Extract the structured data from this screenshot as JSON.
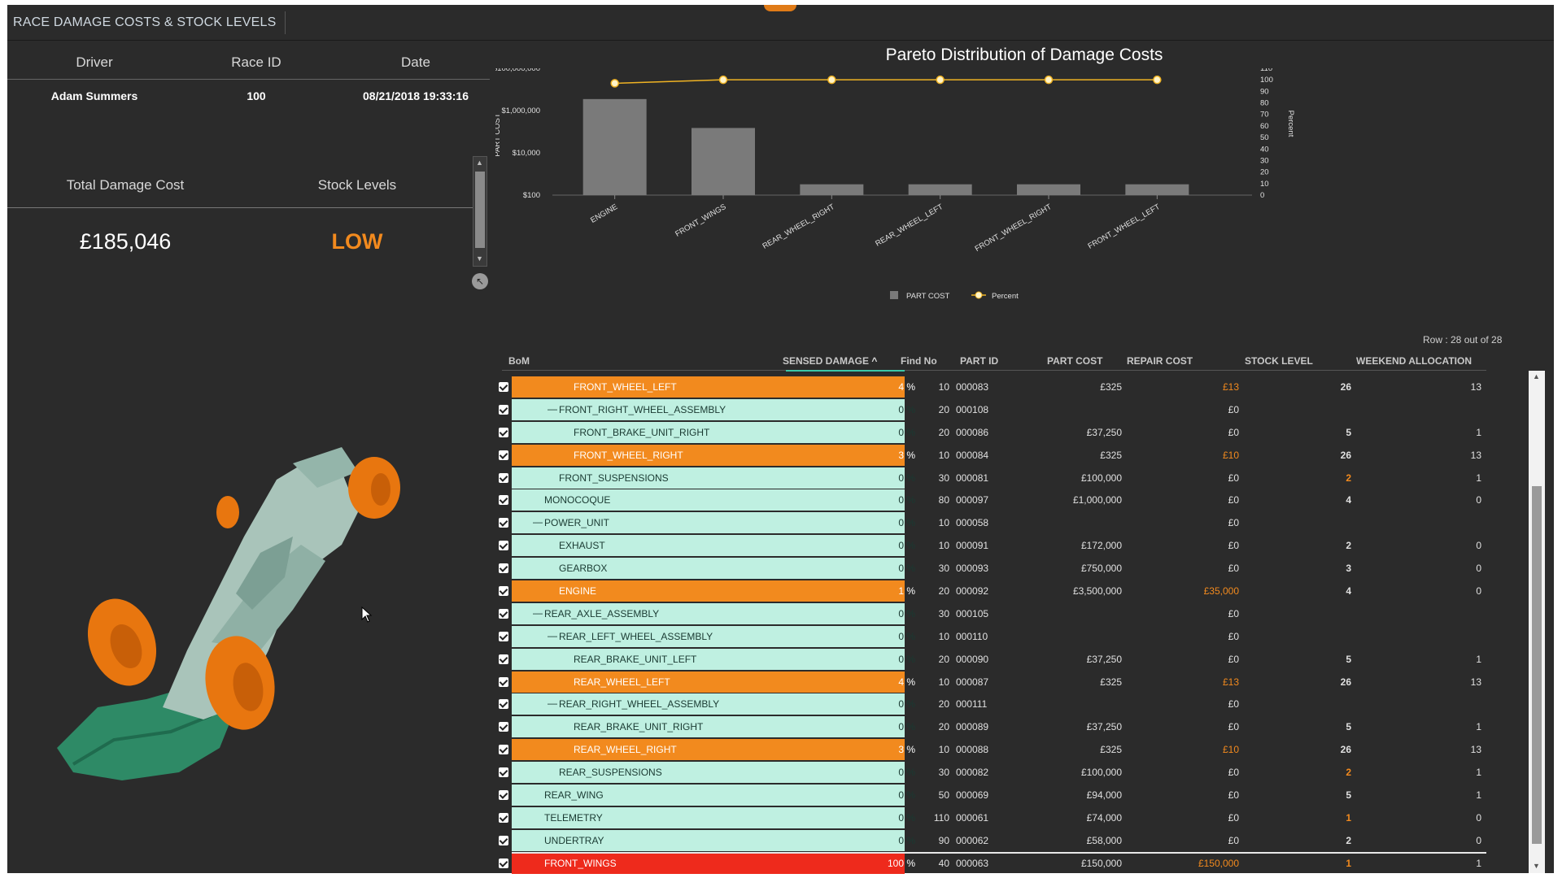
{
  "app": {
    "title": "RACE DAMAGE COSTS & STOCK LEVELS"
  },
  "info": {
    "headers": [
      "Driver",
      "Race ID",
      "Date"
    ],
    "values": [
      "Adam Summers",
      "100",
      "08/21/2018 19:33:16"
    ]
  },
  "kpis": {
    "total_label": "Total Damage Cost",
    "total_value": "£185,046",
    "stock_label": "Stock Levels",
    "stock_value": "LOW",
    "stock_color": "#f28a1e"
  },
  "chart_data": {
    "type": "bar",
    "title": "Pareto Distribution of  Damage Costs",
    "categories": [
      "ENGINE",
      "FRONT_WINGS",
      "REAR_WHEEL_RIGHT",
      "REAR_WHEEL_LEFT",
      "FRONT_WHEEL_RIGHT",
      "FRONT_WHEEL_LEFT"
    ],
    "series": [
      {
        "name": "PART COST",
        "type": "bar",
        "axis": "left",
        "values": [
          3500000,
          150000,
          325,
          325,
          325,
          325
        ],
        "color": "#7a7a7a"
      },
      {
        "name": "Percent",
        "type": "line",
        "axis": "right",
        "values": [
          97,
          100,
          100,
          100,
          100,
          100
        ],
        "color": "#f0b323"
      }
    ],
    "ylabel": "PART COST",
    "ylabel_right": "Percent",
    "yscale": "log",
    "ylim": [
      100,
      100000000
    ],
    "y_ticks": [
      "$100,000,000",
      "$1,000,000",
      "$10,000",
      "$100"
    ],
    "y_tick_values": [
      100000000,
      1000000,
      10000,
      100
    ],
    "ylim_right": [
      0,
      110
    ],
    "y_right_ticks": [
      "110",
      "100",
      "90",
      "80",
      "70",
      "60",
      "50",
      "40",
      "30",
      "20",
      "10",
      "0"
    ],
    "legend": [
      "PART COST",
      "Percent"
    ],
    "legend_position": "bottom-center"
  },
  "table": {
    "row_count": "Row : 28 out of 28",
    "headers": {
      "bom": "BoM",
      "damage": "SENSED DAMAGE",
      "sort_icon": "^",
      "find": "Find No",
      "part_id": "PART ID",
      "cost": "PART COST",
      "repair": "REPAIR COST",
      "stock": "STOCK LEVEL",
      "alloc": "WEEKEND ALLOCATION"
    },
    "rows": [
      {
        "name": "FRONT_WHEEL_LEFT",
        "level": 3,
        "collapse": "",
        "pct": "4 %",
        "find": "10",
        "part": "000083",
        "cost": "£325",
        "repair": "£13",
        "stock": "26",
        "alloc": "13",
        "hl": "orange",
        "repair_hot": true,
        "stock_hot": false
      },
      {
        "name": "FRONT_RIGHT_WHEEL_ASSEMBLY",
        "level": 2,
        "collapse": "—",
        "pct": "0 %",
        "find": "20",
        "part": "000108",
        "cost": "",
        "repair": "£0",
        "stock": "",
        "alloc": "",
        "hl": "",
        "repair_hot": false,
        "stock_hot": false
      },
      {
        "name": "FRONT_BRAKE_UNIT_RIGHT",
        "level": 3,
        "collapse": "",
        "pct": "0 %",
        "find": "20",
        "part": "000086",
        "cost": "£37,250",
        "repair": "£0",
        "stock": "5",
        "alloc": "1",
        "hl": "",
        "repair_hot": false,
        "stock_hot": false
      },
      {
        "name": "FRONT_WHEEL_RIGHT",
        "level": 3,
        "collapse": "",
        "pct": "3 %",
        "find": "10",
        "part": "000084",
        "cost": "£325",
        "repair": "£10",
        "stock": "26",
        "alloc": "13",
        "hl": "orange",
        "repair_hot": true,
        "stock_hot": false
      },
      {
        "name": "FRONT_SUSPENSIONS",
        "level": 2,
        "collapse": "",
        "pct": "0 %",
        "find": "30",
        "part": "000081",
        "cost": "£100,000",
        "repair": "£0",
        "stock": "2",
        "alloc": "1",
        "hl": "",
        "repair_hot": false,
        "stock_hot": true
      },
      {
        "name": "MONOCOQUE",
        "level": 1,
        "collapse": "",
        "pct": "0 %",
        "find": "80",
        "part": "000097",
        "cost": "£1,000,000",
        "repair": "£0",
        "stock": "4",
        "alloc": "0",
        "hl": "",
        "repair_hot": false,
        "stock_hot": false
      },
      {
        "name": "POWER_UNIT",
        "level": 1,
        "collapse": "—",
        "pct": "0 %",
        "find": "10",
        "part": "000058",
        "cost": "",
        "repair": "£0",
        "stock": "",
        "alloc": "",
        "hl": "",
        "repair_hot": false,
        "stock_hot": false
      },
      {
        "name": "EXHAUST",
        "level": 2,
        "collapse": "",
        "pct": "0 %",
        "find": "10",
        "part": "000091",
        "cost": "£172,000",
        "repair": "£0",
        "stock": "2",
        "alloc": "0",
        "hl": "",
        "repair_hot": false,
        "stock_hot": false
      },
      {
        "name": "GEARBOX",
        "level": 2,
        "collapse": "",
        "pct": "0 %",
        "find": "30",
        "part": "000093",
        "cost": "£750,000",
        "repair": "£0",
        "stock": "3",
        "alloc": "0",
        "hl": "",
        "repair_hot": false,
        "stock_hot": false
      },
      {
        "name": "ENGINE",
        "level": 2,
        "collapse": "",
        "pct": "1 %",
        "find": "20",
        "part": "000092",
        "cost": "£3,500,000",
        "repair": "£35,000",
        "stock": "4",
        "alloc": "0",
        "hl": "orange",
        "repair_hot": true,
        "stock_hot": false
      },
      {
        "name": "REAR_AXLE_ASSEMBLY",
        "level": 1,
        "collapse": "—",
        "pct": "0 %",
        "find": "30",
        "part": "000105",
        "cost": "",
        "repair": "£0",
        "stock": "",
        "alloc": "",
        "hl": "",
        "repair_hot": false,
        "stock_hot": false
      },
      {
        "name": "REAR_LEFT_WHEEL_ASSEMBLY",
        "level": 2,
        "collapse": "—",
        "pct": "0 %",
        "find": "10",
        "part": "000110",
        "cost": "",
        "repair": "£0",
        "stock": "",
        "alloc": "",
        "hl": "",
        "repair_hot": false,
        "stock_hot": false
      },
      {
        "name": "REAR_BRAKE_UNIT_LEFT",
        "level": 3,
        "collapse": "",
        "pct": "0 %",
        "find": "20",
        "part": "000090",
        "cost": "£37,250",
        "repair": "£0",
        "stock": "5",
        "alloc": "1",
        "hl": "",
        "repair_hot": false,
        "stock_hot": false
      },
      {
        "name": "REAR_WHEEL_LEFT",
        "level": 3,
        "collapse": "",
        "pct": "4 %",
        "find": "10",
        "part": "000087",
        "cost": "£325",
        "repair": "£13",
        "stock": "26",
        "alloc": "13",
        "hl": "orange",
        "repair_hot": true,
        "stock_hot": false
      },
      {
        "name": "REAR_RIGHT_WHEEL_ASSEMBLY",
        "level": 2,
        "collapse": "—",
        "pct": "0 %",
        "find": "20",
        "part": "000111",
        "cost": "",
        "repair": "£0",
        "stock": "",
        "alloc": "",
        "hl": "",
        "repair_hot": false,
        "stock_hot": false
      },
      {
        "name": "REAR_BRAKE_UNIT_RIGHT",
        "level": 3,
        "collapse": "",
        "pct": "0 %",
        "find": "20",
        "part": "000089",
        "cost": "£37,250",
        "repair": "£0",
        "stock": "5",
        "alloc": "1",
        "hl": "",
        "repair_hot": false,
        "stock_hot": false
      },
      {
        "name": "REAR_WHEEL_RIGHT",
        "level": 3,
        "collapse": "",
        "pct": "3 %",
        "find": "10",
        "part": "000088",
        "cost": "£325",
        "repair": "£10",
        "stock": "26",
        "alloc": "13",
        "hl": "orange",
        "repair_hot": true,
        "stock_hot": false
      },
      {
        "name": "REAR_SUSPENSIONS",
        "level": 2,
        "collapse": "",
        "pct": "0 %",
        "find": "30",
        "part": "000082",
        "cost": "£100,000",
        "repair": "£0",
        "stock": "2",
        "alloc": "1",
        "hl": "",
        "repair_hot": false,
        "stock_hot": true
      },
      {
        "name": "REAR_WING",
        "level": 1,
        "collapse": "",
        "pct": "0 %",
        "find": "50",
        "part": "000069",
        "cost": "£94,000",
        "repair": "£0",
        "stock": "5",
        "alloc": "1",
        "hl": "",
        "repair_hot": false,
        "stock_hot": false
      },
      {
        "name": "TELEMETRY",
        "level": 1,
        "collapse": "",
        "pct": "0 %",
        "find": "110",
        "part": "000061",
        "cost": "£74,000",
        "repair": "£0",
        "stock": "1",
        "alloc": "0",
        "hl": "",
        "repair_hot": false,
        "stock_hot": true
      },
      {
        "name": "UNDERTRAY",
        "level": 1,
        "collapse": "",
        "pct": "0 %",
        "find": "90",
        "part": "000062",
        "cost": "£58,000",
        "repair": "£0",
        "stock": "2",
        "alloc": "0",
        "hl": "",
        "repair_hot": false,
        "stock_hot": false
      },
      {
        "name": "FRONT_WINGS",
        "level": 1,
        "collapse": "",
        "pct": "100 %",
        "find": "40",
        "part": "000063",
        "cost": "£150,000",
        "repair": "£150,000",
        "stock": "1",
        "alloc": "1",
        "hl": "red",
        "repair_hot": true,
        "stock_hot": true
      }
    ]
  },
  "colors": {
    "accent": "#f28a1e",
    "damage_zero": "#bff0e1",
    "damage_critical": "#ee2a1c",
    "car_body": "#a9c4ba",
    "car_tyres": "#e8760f",
    "car_wing": "#2e8a66"
  }
}
